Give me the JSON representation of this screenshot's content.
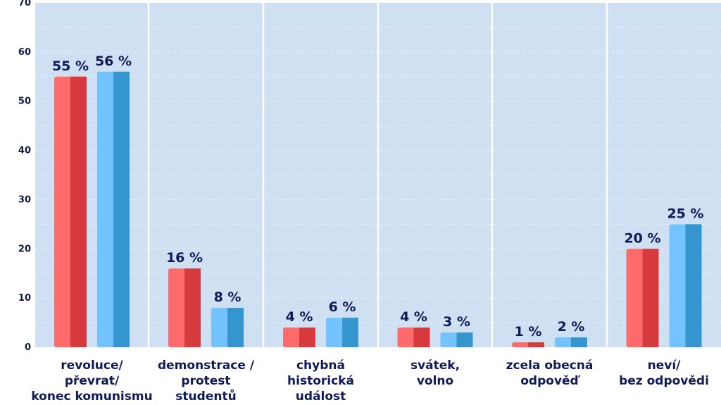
{
  "chart_data": {
    "type": "bar",
    "categories": [
      [
        "revoluce/",
        "převrat/",
        "konec komunismu"
      ],
      [
        "demonstrace /",
        "protest",
        "studentů"
      ],
      [
        "chybná",
        "historická",
        "událost"
      ],
      [
        "svátek,",
        "volno"
      ],
      [
        "zcela obecná",
        "odpověď"
      ],
      [
        "neví/",
        "bez odpovědi"
      ]
    ],
    "series": [
      {
        "values": [
          55,
          16,
          4,
          4,
          1,
          20
        ],
        "labels": [
          "55 %",
          "16 %",
          "4 %",
          "4 %",
          "1 %",
          "20 %"
        ]
      },
      {
        "values": [
          56,
          8,
          6,
          3,
          2,
          25
        ],
        "labels": [
          "56 %",
          "8 %",
          "6 %",
          "3 %",
          "2 %",
          "25 %"
        ]
      }
    ],
    "yticks": [
      "0",
      "10",
      "20",
      "30",
      "40",
      "50",
      "60",
      "70"
    ],
    "ylim": [
      0,
      70
    ],
    "grid": true,
    "colors": {
      "plot_bg": "#cfe0f2",
      "grid": "#ffffff",
      "series1_light": "#ff6b6b",
      "series1_dark": "#d63a3f",
      "series2_light": "#73c3ff",
      "series2_dark": "#3596cf"
    }
  }
}
